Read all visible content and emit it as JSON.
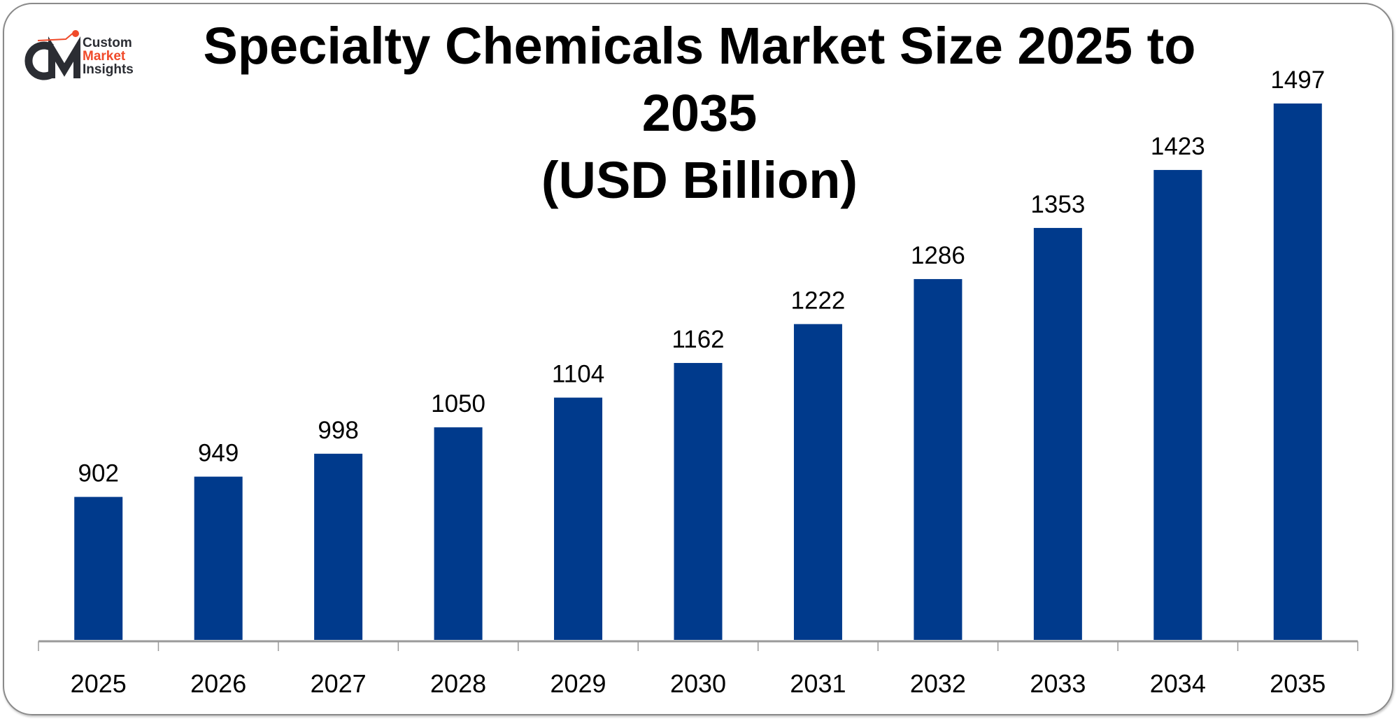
{
  "brand": {
    "line1": "Custom",
    "line2": "Market",
    "line3": "Insights",
    "colors": {
      "dark": "#2b2d33",
      "accent": "#f04a2a"
    }
  },
  "chart_data": {
    "type": "bar",
    "title_line1": "Specialty Chemicals Market Size 2025 to 2035",
    "title_line2": "(USD Billion)",
    "categories": [
      "2025",
      "2026",
      "2027",
      "2028",
      "2029",
      "2030",
      "2031",
      "2032",
      "2033",
      "2034",
      "2035"
    ],
    "values": [
      902,
      949,
      998,
      1050,
      1104,
      1162,
      1222,
      1286,
      1353,
      1423,
      1497
    ],
    "value_labels": [
      "902",
      "949",
      "998",
      "1050",
      "1104",
      "1162",
      "1222",
      "1286",
      "1353",
      "1423",
      "1497"
    ],
    "xlabel": "",
    "ylabel": "",
    "bar_color": "#003a8c",
    "grid": false,
    "legend": "none"
  }
}
